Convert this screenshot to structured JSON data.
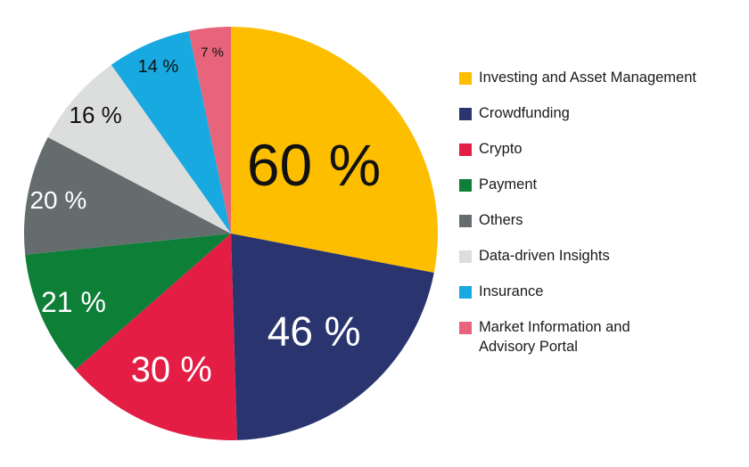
{
  "chart_data": {
    "type": "pie",
    "title": "",
    "slices": [
      {
        "label": "Investing and Asset Management",
        "value": 60,
        "text": "60 %",
        "color": "#FDBE00"
      },
      {
        "label": "Crowdfunding",
        "value": 46,
        "text": "46 %",
        "color": "#2A3570"
      },
      {
        "label": "Crypto",
        "value": 30,
        "text": "30 %",
        "color": "#E31D43"
      },
      {
        "label": "Payment",
        "value": 21,
        "text": "21 %",
        "color": "#0D7F37"
      },
      {
        "label": "Others",
        "value": 20,
        "text": "20 %",
        "color": "#646C6D"
      },
      {
        "label": "Data-driven Insights",
        "value": 16,
        "text": "16 %",
        "color": "#DCDDDD"
      },
      {
        "label": "Insurance",
        "value": 14,
        "text": "14 %",
        "color": "#18A9E0"
      },
      {
        "label": "Market Information and Advisory Portal",
        "value": 7,
        "text": "7 %",
        "color": "#E8647A"
      }
    ],
    "legend_position": "right"
  }
}
